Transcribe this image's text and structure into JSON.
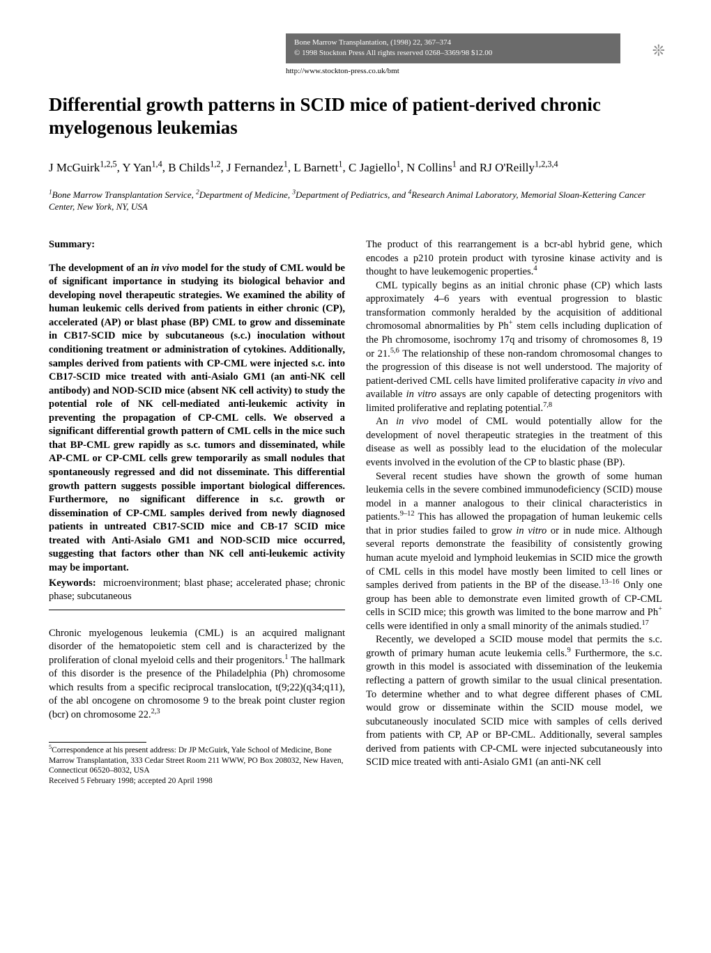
{
  "header": {
    "journal": "Bone Marrow Transplantation, (1998) 22, 367–374",
    "copyright": "© 1998 Stockton Press   All rights reserved 0268–3369/98 $12.00",
    "url": "http://www.stockton-press.co.uk/bmt",
    "logo_glyph": "❊"
  },
  "title": "Differential growth patterns in SCID mice of patient-derived chronic myelogenous leukemias",
  "authors": "J McGuirk1,2,5, Y Yan1,4, B Childs1,2, J Fernandez1, L Barnett1, C Jagiello1, N Collins1 and RJ O'Reilly1,2,3,4",
  "affiliations": "1Bone Marrow Transplantation Service, 2Department of Medicine, 3Department of Pediatrics, and 4Research Animal Laboratory, Memorial Sloan-Kettering Cancer Center, New York, NY, USA",
  "summary": {
    "heading": "Summary:",
    "text": "The development of an in vivo model for the study of CML would be of significant importance in studying its biological behavior and developing novel therapeutic strategies. We examined the ability of human leukemic cells derived from patients in either chronic (CP), accelerated (AP) or blast phase (BP) CML to grow and disseminate in CB17-SCID mice by subcutaneous (s.c.) inoculation without conditioning treatment or administration of cytokines. Additionally, samples derived from patients with CP-CML were injected s.c. into CB17-SCID mice treated with anti-Asialo GM1 (an anti-NK cell antibody) and NOD-SCID mice (absent NK cell activity) to study the potential role of NK cell-mediated anti-leukemic activity in preventing the propagation of CP-CML cells. We observed a significant differential growth pattern of CML cells in the mice such that BP-CML grew rapidly as s.c. tumors and disseminated, while AP-CML or CP-CML cells grew temporarily as small nodules that spontaneously regressed and did not disseminate. This differential growth pattern suggests possible important biological differences. Furthermore, no significant difference in s.c. growth or dissemination of CP-CML samples derived from newly diagnosed patients in untreated CB17-SCID mice and CB-17 SCID mice treated with Anti-Asialo GM1 and NOD-SCID mice occurred, suggesting that factors other than NK cell anti-leukemic activity may be important.",
    "keywords_label": "Keywords:",
    "keywords": "microenvironment; blast phase; accelerated phase; chronic phase; subcutaneous"
  },
  "left_body": {
    "p1": "Chronic myelogenous leukemia (CML) is an acquired malignant disorder of the hematopoietic stem cell and is characterized by the proliferation of clonal myeloid cells and their progenitors.1 The hallmark of this disorder is the presence of the Philadelphia (Ph) chromosome which results from a specific reciprocal translocation, t(9;22)(q34;q11), of the abl oncogene on chromosome 9 to the break point cluster region (bcr) on chromosome 22.2,3"
  },
  "right_body": {
    "p1_pre": "The product of this rearrangement is a bcr-abl hybrid gene, which encodes a p210 protein product with tyrosine kinase activity and is thought to have leukemogenic properties.",
    "p1_sup": "4",
    "p2": "CML typically begins as an initial chronic phase (CP) which lasts approximately 4–6 years with eventual progression to blastic transformation commonly heralded by the acquisition of additional chromosomal abnormalities by Ph+ stem cells including duplication of the Ph chromosome, isochromy 17q and trisomy of chromosomes 8, 19 or 21.5,6 The relationship of these non-random chromosomal changes to the progression of this disease is not well understood. The majority of patient-derived CML cells have limited proliferative capacity in vivo and available in vitro assays are only capable of detecting progenitors with limited proliferative and replating potential.7,8",
    "p3": "An in vivo model of CML would potentially allow for the development of novel therapeutic strategies in the treatment of this disease as well as possibly lead to the elucidation of the molecular events involved in the evolution of the CP to blastic phase (BP).",
    "p4": "Several recent studies have shown the growth of some human leukemia cells in the severe combined immunodeficiency (SCID) mouse model in a manner analogous to their clinical characteristics in patients.9–12 This has allowed the propagation of human leukemic cells that in prior studies failed to grow in vitro or in nude mice. Although several reports demonstrate the feasibility of consistently growing human acute myeloid and lymphoid leukemias in SCID mice the growth of CML cells in this model have mostly been limited to cell lines or samples derived from patients in the BP of the disease.13–16 Only one group has been able to demonstrate even limited growth of CP-CML cells in SCID mice; this growth was limited to the bone marrow and Ph+ cells were identified in only a small minority of the animals studied.17",
    "p5": "Recently, we developed a SCID mouse model that permits the s.c. growth of primary human acute leukemia cells.9 Furthermore, the s.c. growth in this model is associated with dissemination of the leukemia reflecting a pattern of growth similar to the usual clinical presentation. To determine whether and to what degree different phases of CML would grow or disseminate within the SCID mouse model, we subcutaneously inoculated SCID mice with samples of cells derived from patients with CP, AP or BP-CML. Additionally, several samples derived from patients with CP-CML were injected subcutaneously into SCID mice treated with anti-Asialo GM1 (an anti-NK cell"
  },
  "footnote": {
    "correspondence": "5Correspondence at his present address: Dr JP McGuirk, Yale School of Medicine, Bone Marrow Transplantation, 333 Cedar Street Room 211 WWW, PO Box 208032, New Haven, Connecticut 06520–8032, USA",
    "received": "Received 5 February 1998; accepted 20 April 1998"
  }
}
